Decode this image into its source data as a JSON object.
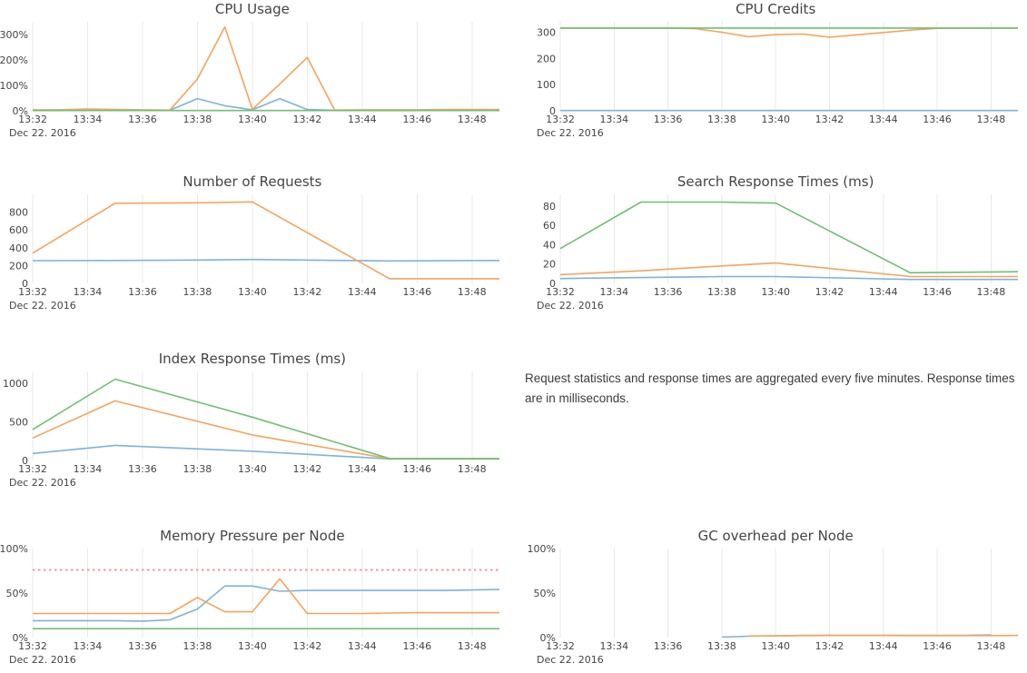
{
  "page": {
    "note_text": "Request statistics and response times are aggregated every five minutes. Response times are in milliseconds."
  },
  "colors": {
    "blue": "#7eb2dd",
    "orange": "#f7a35c",
    "green": "#6fbf73",
    "red": "#ef9a99",
    "grid": "#e9e9e9",
    "text": "#444444"
  },
  "x_axis": {
    "tick_minutes": [
      32,
      34,
      36,
      38,
      40,
      42,
      44,
      46,
      48
    ],
    "tick_labels": [
      "13:32",
      "13:34",
      "13:36",
      "13:38",
      "13:40",
      "13:42",
      "13:44",
      "13:46",
      "13:48"
    ],
    "date_label": "Dec 22. 2016"
  },
  "chart_data": [
    {
      "id": "cpu-usage",
      "title": "CPU Usage",
      "type": "line",
      "row": 0,
      "col": 0,
      "ylim": [
        0,
        350
      ],
      "yticks": [
        {
          "v": 0,
          "label": "0%"
        },
        {
          "v": 100,
          "label": "100%"
        },
        {
          "v": 200,
          "label": "200%"
        },
        {
          "v": 300,
          "label": "300%"
        }
      ],
      "series": [
        {
          "name": "blue",
          "color": "blue",
          "dash": false,
          "points": [
            [
              32,
              2
            ],
            [
              33,
              2
            ],
            [
              34,
              2
            ],
            [
              35,
              2
            ],
            [
              36,
              2
            ],
            [
              37,
              2
            ],
            [
              38,
              48
            ],
            [
              39,
              20
            ],
            [
              40,
              4
            ],
            [
              41,
              48
            ],
            [
              42,
              5
            ],
            [
              43,
              2
            ],
            [
              44,
              2
            ],
            [
              45,
              2
            ],
            [
              46,
              2
            ],
            [
              47,
              2
            ],
            [
              48,
              2
            ],
            [
              49,
              2
            ]
          ]
        },
        {
          "name": "orange",
          "color": "orange",
          "dash": false,
          "points": [
            [
              32,
              4
            ],
            [
              33,
              4
            ],
            [
              34,
              7
            ],
            [
              35,
              5
            ],
            [
              36,
              4
            ],
            [
              37,
              3
            ],
            [
              38,
              125
            ],
            [
              39,
              330
            ],
            [
              40,
              6
            ],
            [
              41,
              105
            ],
            [
              42,
              210
            ],
            [
              43,
              3
            ],
            [
              44,
              4
            ],
            [
              45,
              4
            ],
            [
              46,
              4
            ],
            [
              47,
              5
            ],
            [
              48,
              5
            ],
            [
              49,
              5
            ]
          ]
        },
        {
          "name": "green",
          "color": "green",
          "dash": false,
          "points": [
            [
              32,
              1
            ],
            [
              49,
              1
            ]
          ]
        }
      ]
    },
    {
      "id": "cpu-credits",
      "title": "CPU Credits",
      "type": "line",
      "row": 0,
      "col": 1,
      "ylim": [
        0,
        340
      ],
      "yticks": [
        {
          "v": 0,
          "label": "0"
        },
        {
          "v": 100,
          "label": "100"
        },
        {
          "v": 200,
          "label": "200"
        },
        {
          "v": 300,
          "label": "300"
        }
      ],
      "series": [
        {
          "name": "blue",
          "color": "blue",
          "dash": false,
          "points": [
            [
              32,
              1
            ],
            [
              49,
              1
            ]
          ]
        },
        {
          "name": "orange",
          "color": "orange",
          "dash": false,
          "points": [
            [
              32,
              316
            ],
            [
              33,
              316
            ],
            [
              34,
              316
            ],
            [
              35,
              316
            ],
            [
              36,
              316
            ],
            [
              37,
              314
            ],
            [
              38,
              300
            ],
            [
              39,
              283
            ],
            [
              40,
              291
            ],
            [
              41,
              293
            ],
            [
              42,
              281
            ],
            [
              43,
              290
            ],
            [
              44,
              299
            ],
            [
              45,
              308
            ],
            [
              46,
              315
            ],
            [
              47,
              316
            ],
            [
              48,
              316
            ],
            [
              49,
              316
            ]
          ]
        },
        {
          "name": "green",
          "color": "green",
          "dash": false,
          "points": [
            [
              32,
              316
            ],
            [
              49,
              316
            ]
          ]
        }
      ]
    },
    {
      "id": "number-of-requests",
      "title": "Number of Requests",
      "type": "line",
      "row": 1,
      "col": 0,
      "ylim": [
        0,
        1000
      ],
      "yticks": [
        {
          "v": 0,
          "label": "0"
        },
        {
          "v": 200,
          "label": "200"
        },
        {
          "v": 400,
          "label": "400"
        },
        {
          "v": 600,
          "label": "600"
        },
        {
          "v": 800,
          "label": "800"
        }
      ],
      "series": [
        {
          "name": "blue",
          "color": "blue",
          "dash": false,
          "points": [
            [
              32,
              255
            ],
            [
              35,
              257
            ],
            [
              38,
              262
            ],
            [
              40,
              268
            ],
            [
              45,
              252
            ],
            [
              49,
              257
            ]
          ]
        },
        {
          "name": "orange",
          "color": "orange",
          "dash": false,
          "points": [
            [
              32,
              340
            ],
            [
              35,
              900
            ],
            [
              38,
              905
            ],
            [
              40,
              915
            ],
            [
              45,
              52
            ],
            [
              49,
              52
            ]
          ]
        }
      ]
    },
    {
      "id": "search-response-times",
      "title": "Search Response Times (ms)",
      "type": "line",
      "row": 1,
      "col": 1,
      "ylim": [
        0,
        92
      ],
      "yticks": [
        {
          "v": 0,
          "label": "0"
        },
        {
          "v": 20,
          "label": "20"
        },
        {
          "v": 40,
          "label": "40"
        },
        {
          "v": 60,
          "label": "60"
        },
        {
          "v": 80,
          "label": "80"
        }
      ],
      "series": [
        {
          "name": "blue",
          "color": "blue",
          "dash": false,
          "points": [
            [
              32,
              5
            ],
            [
              35,
              6
            ],
            [
              38,
              7
            ],
            [
              40,
              7
            ],
            [
              45,
              4
            ],
            [
              49,
              4
            ]
          ]
        },
        {
          "name": "orange",
          "color": "orange",
          "dash": false,
          "points": [
            [
              32,
              9
            ],
            [
              35,
              13
            ],
            [
              38,
              18
            ],
            [
              40,
              21
            ],
            [
              45,
              7
            ],
            [
              49,
              7
            ]
          ]
        },
        {
          "name": "green",
          "color": "green",
          "dash": false,
          "points": [
            [
              32,
              36
            ],
            [
              35,
              84
            ],
            [
              38,
              84
            ],
            [
              40,
              83
            ],
            [
              45,
              11
            ],
            [
              49,
              12
            ]
          ]
        }
      ]
    },
    {
      "id": "index-response-times",
      "title": "Index Response Times (ms)",
      "type": "line",
      "row": 2,
      "col": 0,
      "ylim": [
        0,
        1150
      ],
      "yticks": [
        {
          "v": 0,
          "label": "0"
        },
        {
          "v": 500,
          "label": "500"
        },
        {
          "v": 1000,
          "label": "1000"
        }
      ],
      "series": [
        {
          "name": "blue",
          "color": "blue",
          "dash": false,
          "points": [
            [
              32,
              90
            ],
            [
              35,
              195
            ],
            [
              40,
              120
            ],
            [
              45,
              20
            ],
            [
              49,
              20
            ]
          ]
        },
        {
          "name": "orange",
          "color": "orange",
          "dash": false,
          "points": [
            [
              32,
              290
            ],
            [
              35,
              770
            ],
            [
              40,
              330
            ],
            [
              45,
              22
            ],
            [
              49,
              22
            ]
          ]
        },
        {
          "name": "green",
          "color": "green",
          "dash": false,
          "points": [
            [
              32,
              400
            ],
            [
              35,
              1050
            ],
            [
              40,
              560
            ],
            [
              45,
              25
            ],
            [
              49,
              25
            ]
          ]
        }
      ]
    },
    {
      "id": "memory-pressure",
      "title": "Memory Pressure per Node",
      "type": "line",
      "row": 3,
      "col": 0,
      "ylim": [
        0,
        100
      ],
      "yticks": [
        {
          "v": 0,
          "label": "0%"
        },
        {
          "v": 50,
          "label": "50%"
        },
        {
          "v": 100,
          "label": "100%"
        }
      ],
      "series": [
        {
          "name": "blue",
          "color": "blue",
          "dash": false,
          "points": [
            [
              32,
              19
            ],
            [
              33,
              19
            ],
            [
              34,
              19
            ],
            [
              35,
              19
            ],
            [
              36,
              18.5
            ],
            [
              37,
              20
            ],
            [
              38,
              32
            ],
            [
              39,
              58
            ],
            [
              40,
              58
            ],
            [
              41,
              52
            ],
            [
              42,
              53
            ],
            [
              43,
              53
            ],
            [
              44,
              53
            ],
            [
              45,
              53
            ],
            [
              46,
              53
            ],
            [
              47,
              53
            ],
            [
              48,
              53.5
            ],
            [
              49,
              54
            ]
          ]
        },
        {
          "name": "orange",
          "color": "orange",
          "dash": false,
          "points": [
            [
              32,
              27
            ],
            [
              33,
              27
            ],
            [
              34,
              27
            ],
            [
              35,
              27
            ],
            [
              36,
              27
            ],
            [
              37,
              27
            ],
            [
              38,
              45
            ],
            [
              39,
              29
            ],
            [
              40,
              29
            ],
            [
              41,
              66
            ],
            [
              42,
              27
            ],
            [
              43,
              27
            ],
            [
              44,
              27
            ],
            [
              45,
              27.5
            ],
            [
              46,
              28
            ],
            [
              47,
              28
            ],
            [
              48,
              28
            ],
            [
              49,
              28
            ]
          ]
        },
        {
          "name": "green",
          "color": "green",
          "dash": false,
          "points": [
            [
              32,
              10
            ],
            [
              49,
              10
            ]
          ]
        },
        {
          "name": "threshold",
          "color": "red",
          "dash": true,
          "points": [
            [
              32,
              76
            ],
            [
              49,
              76
            ]
          ]
        }
      ]
    },
    {
      "id": "gc-overhead",
      "title": "GC overhead per Node",
      "type": "line",
      "row": 3,
      "col": 1,
      "ylim": [
        0,
        100
      ],
      "yticks": [
        {
          "v": 0,
          "label": "0%"
        },
        {
          "v": 50,
          "label": "50%"
        },
        {
          "v": 100,
          "label": "100%"
        }
      ],
      "series": [
        {
          "name": "blue",
          "color": "blue",
          "dash": false,
          "points": [
            [
              38,
              0.5
            ],
            [
              39,
              1.5
            ],
            [
              40,
              2
            ],
            [
              41,
              2.5
            ],
            [
              42,
              2.5
            ],
            [
              43,
              2.5
            ],
            [
              44,
              2.5
            ],
            [
              45,
              2.5
            ],
            [
              46,
              2.5
            ],
            [
              47,
              2.5
            ],
            [
              48,
              3
            ]
          ]
        },
        {
          "name": "orange",
          "color": "orange",
          "dash": false,
          "points": [
            [
              39,
              1.8
            ],
            [
              40,
              1.8
            ],
            [
              41,
              2.2
            ],
            [
              42,
              2.3
            ],
            [
              43,
              2.3
            ],
            [
              44,
              2.3
            ],
            [
              45,
              2.2
            ],
            [
              46,
              2.2
            ],
            [
              47,
              2.2
            ],
            [
              48,
              2.2
            ],
            [
              49,
              2.3
            ]
          ]
        }
      ]
    }
  ]
}
